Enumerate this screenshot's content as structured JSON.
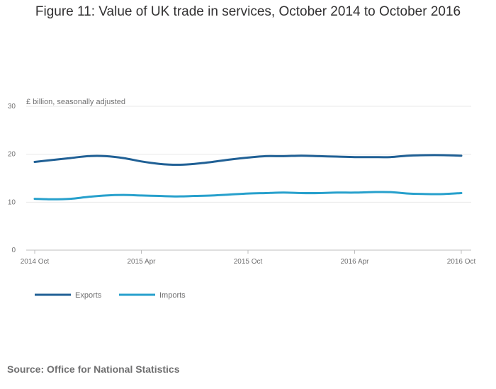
{
  "chart_data": {
    "type": "line",
    "title": "Figure 11: Value of UK trade in services, October 2014 to October 2016",
    "ylabel": "£ billion, seasonally adjusted",
    "xlabel": "",
    "ylim": [
      0,
      30
    ],
    "yticks": [
      0,
      10,
      20,
      30
    ],
    "xlim": [
      0,
      24
    ],
    "xticks": [
      {
        "pos": 0,
        "label": "2014 Oct"
      },
      {
        "pos": 6,
        "label": "2015 Apr"
      },
      {
        "pos": 12,
        "label": "2015 Oct"
      },
      {
        "pos": 18,
        "label": "2016 Apr"
      },
      {
        "pos": 24,
        "label": "2016 Oct"
      }
    ],
    "x": [
      0,
      1,
      2,
      3,
      4,
      5,
      6,
      7,
      8,
      9,
      10,
      11,
      12,
      13,
      14,
      15,
      16,
      17,
      18,
      19,
      20,
      21,
      22,
      23,
      24
    ],
    "series": [
      {
        "name": "Exports",
        "color": "#206095",
        "values": [
          18.4,
          18.8,
          19.2,
          19.6,
          19.6,
          19.2,
          18.5,
          18.0,
          17.8,
          18.0,
          18.4,
          18.9,
          19.3,
          19.6,
          19.6,
          19.7,
          19.6,
          19.5,
          19.4,
          19.4,
          19.4,
          19.7,
          19.8,
          19.8,
          19.7
        ]
      },
      {
        "name": "Imports",
        "color": "#27a0cc",
        "values": [
          10.7,
          10.6,
          10.7,
          11.1,
          11.4,
          11.5,
          11.4,
          11.3,
          11.2,
          11.3,
          11.4,
          11.6,
          11.8,
          11.9,
          12.0,
          11.9,
          11.9,
          12.0,
          12.0,
          12.1,
          12.1,
          11.8,
          11.7,
          11.7,
          11.9
        ]
      }
    ],
    "legend": "bottom-left",
    "grid": true
  },
  "source": "Source: Office for National Statistics"
}
